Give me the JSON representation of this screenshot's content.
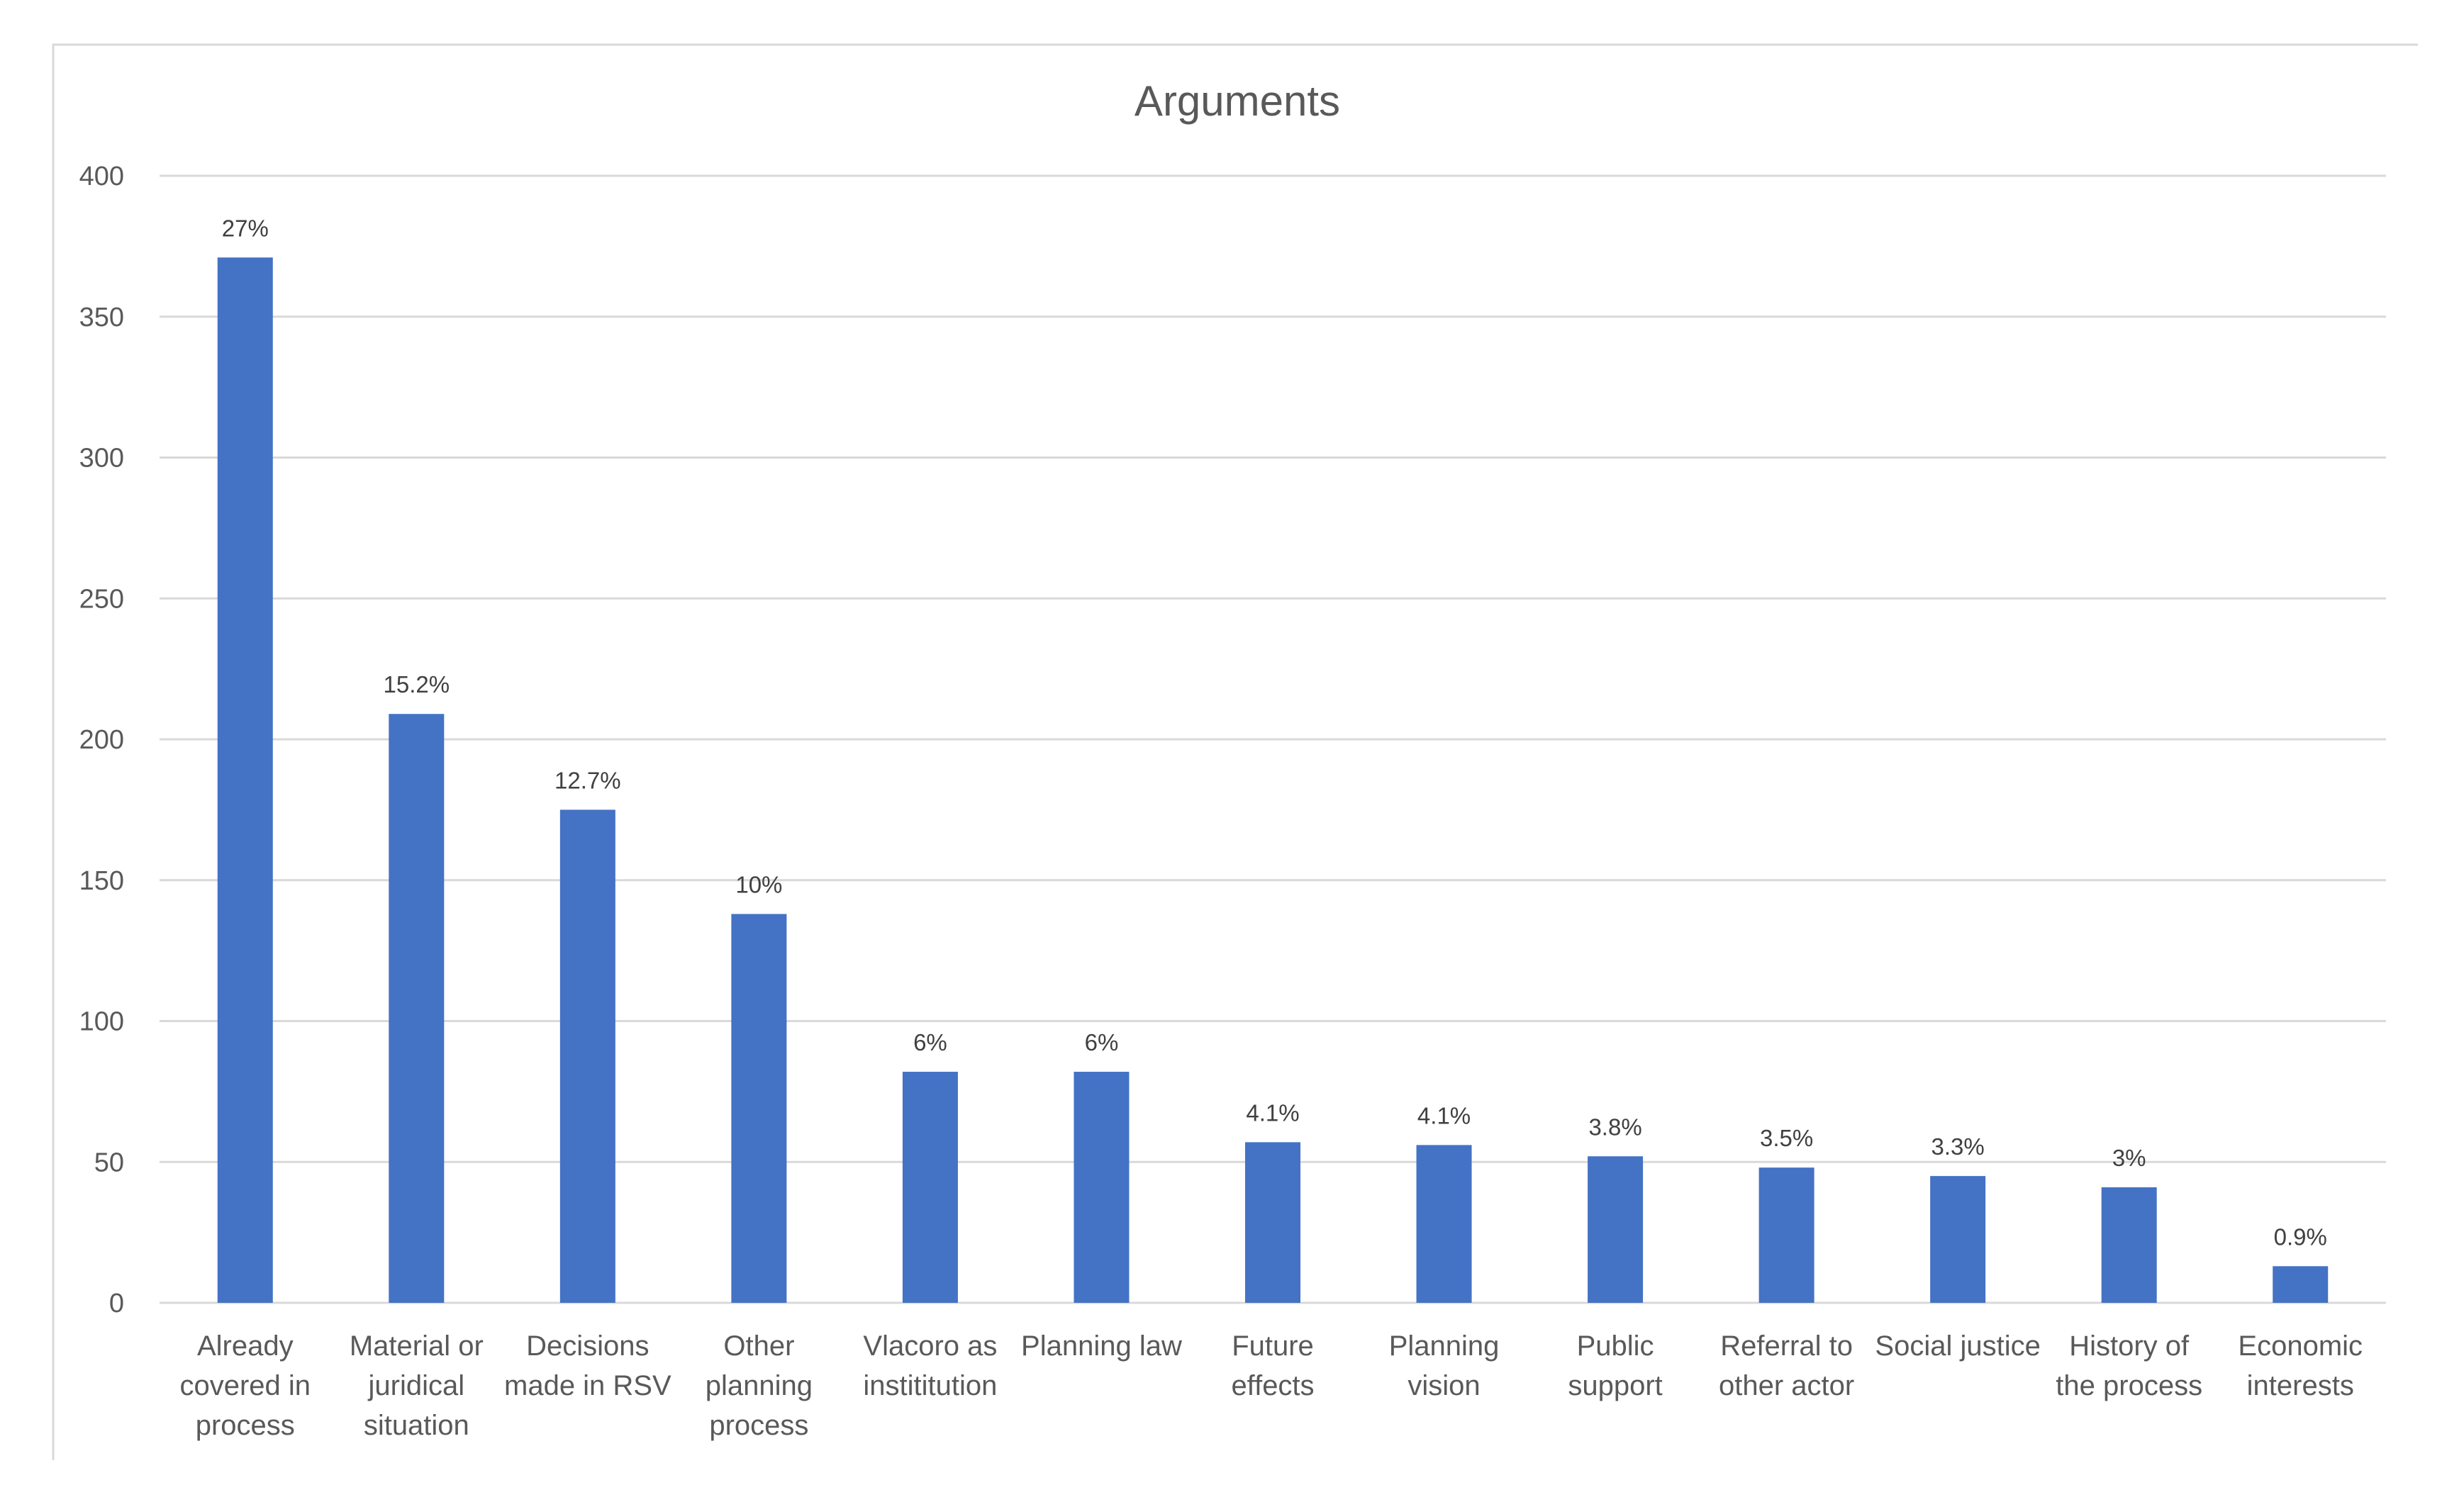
{
  "chart_data": {
    "type": "bar",
    "title": "Arguments",
    "xlabel": "",
    "ylabel": "",
    "ylim": [
      0,
      400
    ],
    "yticks": [
      0,
      50,
      100,
      150,
      200,
      250,
      300,
      350,
      400
    ],
    "grid": true,
    "legend": "none",
    "bar_color": "#4472c4",
    "categories": [
      "Already covered in process",
      "Material or juridical situation",
      "Decisions made in RSV",
      "Other planning process",
      "Vlacoro as instititution",
      "Planning law",
      "Future effects",
      "Planning vision",
      "Public support",
      "Referral to other actor",
      "Social justice",
      "History of the process",
      "Economic interests"
    ],
    "category_lines": [
      [
        "Already",
        "covered in",
        "process"
      ],
      [
        "Material or",
        "juridical",
        "situation"
      ],
      [
        "Decisions",
        "made in RSV"
      ],
      [
        "Other",
        "planning",
        "process"
      ],
      [
        "Vlacoro as",
        "instititution"
      ],
      [
        "Planning law"
      ],
      [
        "Future",
        "effects"
      ],
      [
        "Planning",
        "vision"
      ],
      [
        "Public",
        "support"
      ],
      [
        "Referral to",
        "other actor"
      ],
      [
        "Social justice"
      ],
      [
        "History of",
        "the process"
      ],
      [
        "Economic",
        "interests"
      ]
    ],
    "values": [
      371,
      209,
      175,
      138,
      82,
      82,
      57,
      56,
      52,
      48,
      45,
      41,
      13
    ],
    "data_labels": [
      "27%",
      "15.2%",
      "12.7%",
      "10%",
      "6%",
      "6%",
      "4.1%",
      "4.1%",
      "3.8%",
      "3.5%",
      "3.3%",
      "3%",
      "0.9%"
    ]
  }
}
